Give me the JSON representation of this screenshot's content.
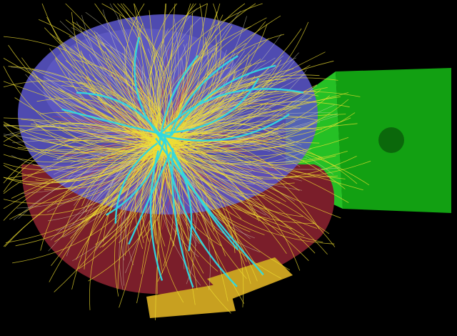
{
  "scene": {
    "background_color": "#000000",
    "detector_colors": {
      "barrel_outer": "#5a55c8",
      "barrel_highlight": "#7670e0",
      "calorimeter": "#7a1e2a",
      "endcap": "#12a012",
      "endcap_light": "#25c025",
      "forward_module": "#c8a020"
    },
    "track_colors": {
      "primary": "#f0e030",
      "secondary": "#d8d8b0",
      "soft": "#e04030",
      "muon": "#30d8e0"
    }
  }
}
